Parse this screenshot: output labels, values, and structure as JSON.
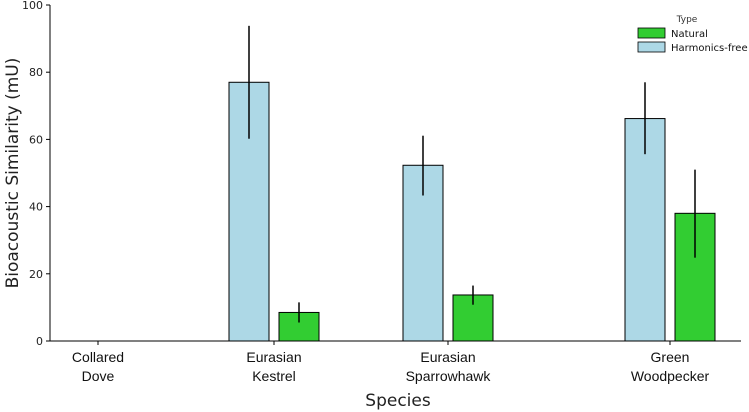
{
  "chart_data": {
    "type": "bar",
    "title": "",
    "xlabel": "Species",
    "ylabel": "Bioacoustic Similarity (mU)",
    "ylim": [
      0,
      100
    ],
    "yticks": [
      0,
      20,
      40,
      60,
      80,
      100
    ],
    "categories": [
      [
        "Collared",
        "Dove"
      ],
      [
        "Eurasian",
        "Kestrel"
      ],
      [
        "Eurasian",
        "Sparrowhawk"
      ],
      [
        "Green",
        "Woodpecker"
      ]
    ],
    "series": [
      {
        "name": "Harmonics-free",
        "color": "#add8e6",
        "values": [
          0,
          77,
          52.3,
          66.2
        ],
        "err_low": [
          0,
          60.2,
          43.3,
          55.6
        ],
        "err_high": [
          0,
          93.8,
          61.1,
          77.0
        ]
      },
      {
        "name": "Natural",
        "color": "#32cd32",
        "values": [
          0,
          8.5,
          13.7,
          38.0
        ],
        "err_low": [
          0,
          5.5,
          10.8,
          24.8
        ],
        "err_high": [
          0,
          11.5,
          16.5,
          51.0
        ]
      }
    ],
    "legend": {
      "title": "Type",
      "position": "top-right",
      "order": [
        "Natural",
        "Harmonics-free"
      ]
    },
    "grid": false
  }
}
